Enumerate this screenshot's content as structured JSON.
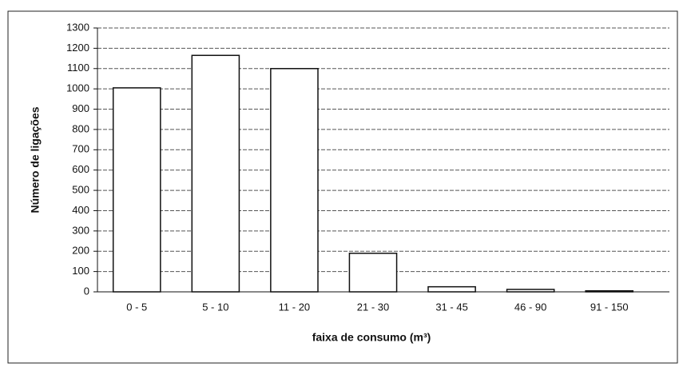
{
  "chart_data": {
    "type": "bar",
    "categories": [
      "0 - 5",
      "5 - 10",
      "11 - 20",
      "21 - 30",
      "31 - 45",
      "46 - 90",
      "91 - 150"
    ],
    "values": [
      1005,
      1165,
      1100,
      190,
      25,
      12,
      5
    ],
    "color": "#ffffff",
    "ylim": [
      0,
      1300
    ],
    "yticks": [
      0,
      100,
      200,
      300,
      400,
      500,
      600,
      700,
      800,
      900,
      1000,
      1100,
      1200,
      1300
    ],
    "grid": true,
    "x_label": "faixa de consumo (m³)",
    "y_label": "Número de ligações"
  }
}
